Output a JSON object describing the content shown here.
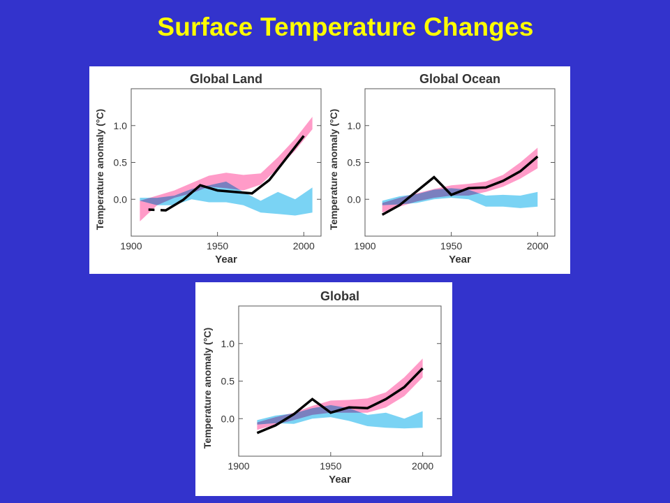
{
  "slide": {
    "title": "Surface Temperature Changes"
  },
  "chart_data": [
    {
      "type": "line",
      "title": "Global Land",
      "xlabel": "Year",
      "ylabel": "Temperature anomaly (°C)",
      "xlim": [
        1900,
        2010
      ],
      "ylim": [
        -0.5,
        1.5
      ],
      "xticks": [
        1900,
        1950,
        2000
      ],
      "yticks": [
        0.0,
        0.5,
        1.0
      ],
      "ytick_labels": [
        "0.0",
        "0.5",
        "1.0"
      ],
      "grid": false,
      "series": [
        {
          "kind": "band",
          "color": "#ff66aa",
          "x": [
            1905,
            1915,
            1925,
            1935,
            1945,
            1955,
            1965,
            1975,
            1985,
            1995,
            2005
          ],
          "low": [
            -0.3,
            -0.08,
            0.02,
            0.08,
            0.17,
            0.15,
            0.12,
            0.2,
            0.42,
            0.66,
            0.95
          ],
          "high": [
            -0.02,
            0.05,
            0.12,
            0.22,
            0.32,
            0.36,
            0.33,
            0.35,
            0.57,
            0.82,
            1.12
          ]
        },
        {
          "kind": "band",
          "color": "#33bbee",
          "x": [
            1905,
            1915,
            1925,
            1935,
            1945,
            1955,
            1965,
            1975,
            1985,
            1995,
            2005
          ],
          "low": [
            -0.02,
            -0.08,
            -0.08,
            0.0,
            -0.04,
            -0.04,
            -0.08,
            -0.18,
            -0.2,
            -0.22,
            -0.18
          ],
          "high": [
            0.02,
            0.02,
            0.05,
            0.14,
            0.19,
            0.24,
            0.1,
            -0.02,
            0.1,
            0.0,
            0.16
          ]
        },
        {
          "kind": "line",
          "color": "#000000",
          "x": [
            1910,
            1920,
            1930,
            1940,
            1950,
            1960,
            1970,
            1980,
            1990,
            2000
          ],
          "y": [
            -0.14,
            -0.15,
            -0.01,
            0.19,
            0.12,
            0.1,
            0.08,
            0.26,
            0.56,
            0.86
          ]
        }
      ]
    },
    {
      "type": "line",
      "title": "Global Ocean",
      "xlabel": "Year",
      "ylabel": "Temperature anomaly (°C)",
      "xlim": [
        1900,
        2010
      ],
      "ylim": [
        -0.5,
        1.5
      ],
      "xticks": [
        1900,
        1950,
        2000
      ],
      "yticks": [
        0.0,
        0.5,
        1.0
      ],
      "ytick_labels": [
        "0.0",
        "0.5",
        "1.0"
      ],
      "grid": false,
      "series": [
        {
          "kind": "band",
          "color": "#ff66aa",
          "x": [
            1910,
            1920,
            1930,
            1940,
            1950,
            1960,
            1970,
            1980,
            1990,
            2000
          ],
          "low": [
            -0.18,
            -0.1,
            -0.03,
            0.02,
            0.05,
            0.05,
            0.1,
            0.17,
            0.28,
            0.42
          ],
          "high": [
            -0.05,
            0.02,
            0.08,
            0.14,
            0.19,
            0.21,
            0.24,
            0.33,
            0.5,
            0.7
          ]
        },
        {
          "kind": "band",
          "color": "#33bbee",
          "x": [
            1910,
            1920,
            1930,
            1940,
            1950,
            1960,
            1970,
            1980,
            1990,
            2000
          ],
          "low": [
            -0.08,
            -0.07,
            -0.05,
            0.0,
            0.02,
            0.0,
            -0.1,
            -0.1,
            -0.12,
            -0.1
          ],
          "high": [
            -0.02,
            0.04,
            0.07,
            0.13,
            0.15,
            0.13,
            0.05,
            0.06,
            0.05,
            0.1
          ]
        },
        {
          "kind": "line",
          "color": "#000000",
          "x": [
            1910,
            1920,
            1930,
            1940,
            1950,
            1960,
            1970,
            1980,
            1990,
            2000
          ],
          "y": [
            -0.21,
            -0.08,
            0.11,
            0.3,
            0.06,
            0.15,
            0.16,
            0.25,
            0.38,
            0.58
          ]
        }
      ]
    },
    {
      "type": "line",
      "title": "Global",
      "xlabel": "Year",
      "ylabel": "Temperature anomaly (°C)",
      "xlim": [
        1900,
        2010
      ],
      "ylim": [
        -0.5,
        1.5
      ],
      "xticks": [
        1900,
        1950,
        2000
      ],
      "yticks": [
        0.0,
        0.5,
        1.0
      ],
      "ytick_labels": [
        "0.0",
        "0.5",
        "1.0"
      ],
      "grid": false,
      "series": [
        {
          "kind": "band",
          "color": "#ff66aa",
          "x": [
            1910,
            1920,
            1930,
            1940,
            1950,
            1960,
            1970,
            1980,
            1990,
            2000
          ],
          "low": [
            -0.15,
            -0.08,
            -0.02,
            0.05,
            0.08,
            0.08,
            0.08,
            0.15,
            0.3,
            0.55
          ],
          "high": [
            -0.05,
            0.02,
            0.08,
            0.17,
            0.24,
            0.25,
            0.27,
            0.35,
            0.55,
            0.8
          ]
        },
        {
          "kind": "band",
          "color": "#33bbee",
          "x": [
            1910,
            1920,
            1930,
            1940,
            1950,
            1960,
            1970,
            1980,
            1990,
            2000
          ],
          "low": [
            -0.08,
            -0.06,
            -0.07,
            0.0,
            0.02,
            -0.03,
            -0.1,
            -0.12,
            -0.13,
            -0.12
          ],
          "high": [
            -0.02,
            0.04,
            0.07,
            0.14,
            0.18,
            0.14,
            0.05,
            0.08,
            0.0,
            0.1
          ]
        },
        {
          "kind": "line",
          "color": "#000000",
          "x": [
            1910,
            1920,
            1930,
            1940,
            1950,
            1960,
            1970,
            1980,
            1990,
            2000
          ],
          "y": [
            -0.19,
            -0.09,
            0.06,
            0.26,
            0.08,
            0.15,
            0.14,
            0.26,
            0.42,
            0.67
          ]
        }
      ]
    }
  ]
}
